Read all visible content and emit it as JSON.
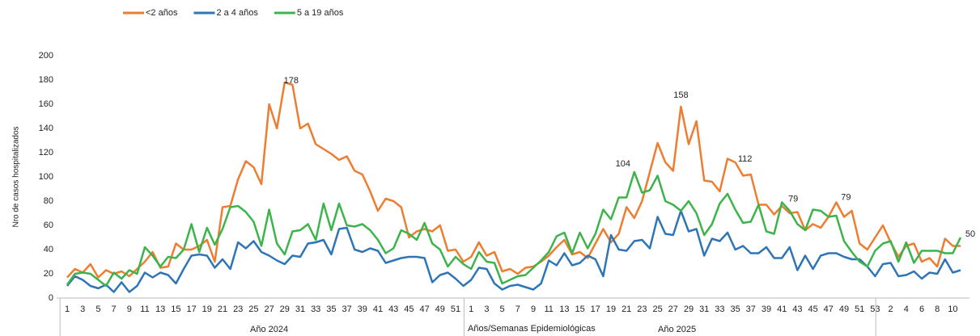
{
  "chart_data": {
    "type": "line",
    "y_label": "Nro de casos hospitalizados",
    "x_label": "Años/Semanas Epidemiológicas",
    "x_groups": [
      "Año 2024",
      "Año 2025"
    ],
    "categories": [
      "1",
      null,
      "3",
      null,
      "5",
      null,
      "7",
      null,
      "9",
      null,
      "11",
      null,
      "13",
      null,
      "15",
      null,
      "17",
      null,
      "19",
      null,
      "21",
      null,
      "23",
      null,
      "25",
      null,
      "27",
      null,
      "29",
      null,
      "31",
      null,
      "33",
      null,
      "35",
      null,
      "37",
      null,
      "39",
      null,
      "41",
      null,
      "43",
      null,
      "45",
      null,
      "47",
      null,
      "49",
      null,
      "51",
      null,
      "1",
      null,
      "3",
      null,
      "5",
      null,
      "7",
      null,
      "9",
      null,
      "11",
      null,
      "13",
      null,
      "15",
      null,
      "17",
      null,
      "19",
      null,
      "21",
      null,
      "23",
      null,
      "25",
      null,
      "27",
      null,
      "29",
      null,
      "31",
      null,
      "33",
      null,
      "35",
      null,
      "37",
      null,
      "39",
      null,
      "41",
      null,
      "43",
      null,
      "45",
      null,
      "47",
      null,
      "49",
      null,
      "51",
      null,
      "53",
      null,
      "2",
      null,
      "4",
      null,
      "6",
      null,
      "8",
      null,
      "10",
      null
    ],
    "ylim": [
      0,
      200
    ],
    "yticks": [
      0,
      20,
      40,
      60,
      80,
      100,
      120,
      140,
      160,
      180,
      200
    ],
    "series": [
      {
        "name": "<2 años",
        "color": "#ED7D31",
        "values": [
          17,
          24,
          21,
          28,
          17,
          23,
          20,
          22,
          18,
          24,
          30,
          38,
          25,
          26,
          45,
          40,
          40,
          43,
          48,
          30,
          75,
          76,
          98,
          113,
          108,
          94,
          160,
          140,
          178,
          176,
          140,
          144,
          127,
          123,
          119,
          114,
          117,
          105,
          102,
          88,
          72,
          82,
          80,
          75,
          50,
          55,
          57,
          55,
          60,
          39,
          40,
          30,
          34,
          46,
          35,
          38,
          22,
          24,
          20,
          25,
          26,
          30,
          35,
          42,
          48,
          36,
          38,
          33,
          45,
          57,
          46,
          53,
          75,
          66,
          80,
          104,
          128,
          112,
          105,
          158,
          127,
          146,
          97,
          96,
          88,
          115,
          112,
          101,
          102,
          77,
          77,
          69,
          76,
          70,
          71,
          56,
          61,
          58,
          67,
          79,
          67,
          72,
          45,
          40,
          50,
          60,
          46,
          34,
          43,
          45,
          30,
          33,
          26,
          49,
          43,
          43
        ]
      },
      {
        "name": "2 a 4 años",
        "color": "#2E75B6",
        "values": [
          10,
          18,
          15,
          10,
          8,
          11,
          5,
          13,
          5,
          10,
          21,
          17,
          21,
          19,
          12,
          24,
          35,
          36,
          35,
          25,
          32,
          24,
          46,
          41,
          47,
          38,
          35,
          31,
          28,
          35,
          34,
          45,
          46,
          48,
          36,
          57,
          58,
          40,
          38,
          41,
          39,
          29,
          31,
          33,
          34,
          34,
          33,
          13,
          19,
          21,
          16,
          10,
          15,
          25,
          24,
          12,
          7,
          10,
          11,
          9,
          7,
          12,
          31,
          27,
          37,
          27,
          29,
          35,
          32,
          18,
          52,
          40,
          39,
          47,
          48,
          41,
          67,
          53,
          52,
          72,
          55,
          57,
          35,
          49,
          47,
          54,
          40,
          43,
          37,
          37,
          42,
          33,
          33,
          42,
          23,
          35,
          24,
          35,
          37,
          37,
          34,
          32,
          32,
          26,
          18,
          28,
          29,
          18,
          19,
          22,
          16,
          21,
          20,
          32,
          21,
          23
        ]
      },
      {
        "name": "5 a 19 años",
        "color": "#3CB44B",
        "values": [
          11,
          20,
          21,
          20,
          15,
          10,
          21,
          16,
          23,
          20,
          42,
          35,
          26,
          34,
          33,
          40,
          61,
          38,
          58,
          44,
          57,
          75,
          76,
          71,
          63,
          43,
          73,
          45,
          36,
          55,
          56,
          61,
          48,
          78,
          56,
          78,
          60,
          59,
          61,
          56,
          48,
          37,
          41,
          56,
          53,
          48,
          62,
          45,
          40,
          26,
          34,
          28,
          24,
          38,
          30,
          29,
          12,
          15,
          18,
          19,
          25,
          31,
          38,
          51,
          54,
          37,
          54,
          41,
          53,
          73,
          65,
          83,
          83,
          104,
          87,
          89,
          101,
          80,
          77,
          72,
          80,
          70,
          52,
          61,
          78,
          86,
          73,
          62,
          63,
          77,
          55,
          53,
          79,
          72,
          61,
          56,
          73,
          72,
          67,
          68,
          47,
          38,
          30,
          26,
          39,
          45,
          47,
          30,
          46,
          29,
          39,
          39,
          39,
          37,
          37,
          50
        ]
      }
    ]
  }
}
